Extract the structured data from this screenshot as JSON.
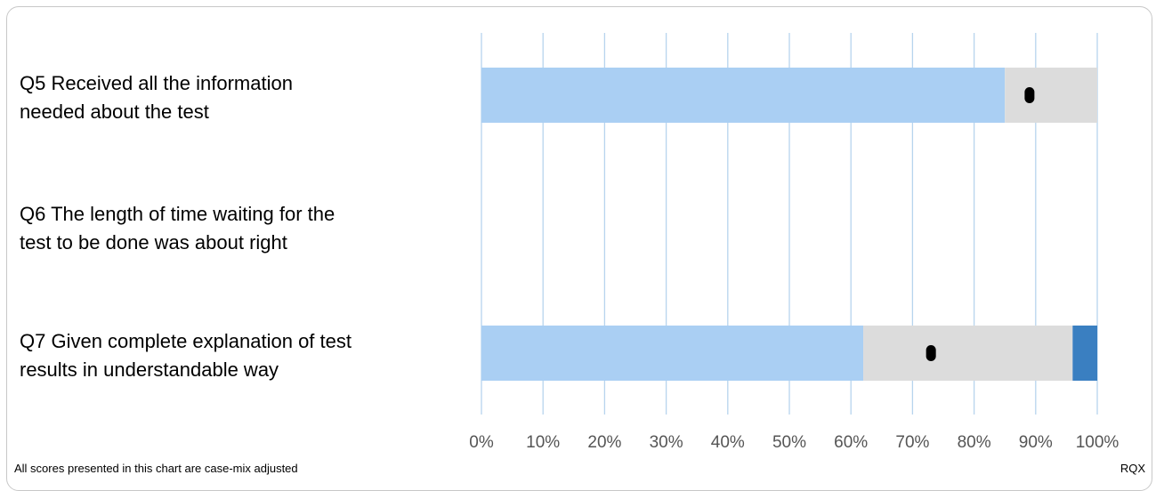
{
  "chart_data": {
    "type": "bar",
    "orientation": "horizontal",
    "stacked": true,
    "categories": [
      "Q5 Received all the information needed about the test",
      "Q6 The length of time waiting for the test to be done was about right",
      "Q7 Given complete explanation of test results in understandable way"
    ],
    "series": [
      {
        "values": [
          85,
          null,
          62
        ],
        "color": "#aacff3"
      },
      {
        "values": [
          15,
          null,
          34
        ],
        "color": "#dcdcdc"
      },
      {
        "values": [
          0,
          null,
          4
        ],
        "color": "#3a7fc1"
      }
    ],
    "markers": [
      89,
      null,
      73
    ],
    "marker_color": "#000000",
    "xlim": [
      0,
      100
    ],
    "xticks": [
      "0%",
      "10%",
      "20%",
      "30%",
      "40%",
      "50%",
      "60%",
      "70%",
      "80%",
      "90%",
      "100%"
    ],
    "grid": true,
    "grid_color": "#b7d4ee",
    "legend": "none"
  },
  "labels": {
    "q5_line1": "Q5 Received all the information",
    "q5_line2": "needed about the test",
    "q6_line1": "Q6 The length of time waiting for the",
    "q6_line2": "test to be done was about right",
    "q7_line1": "Q7 Given complete explanation of test",
    "q7_line2": "results in understandable way"
  },
  "footnote": "All scores presented in this chart are case-mix adjusted",
  "org_code": "RQX"
}
